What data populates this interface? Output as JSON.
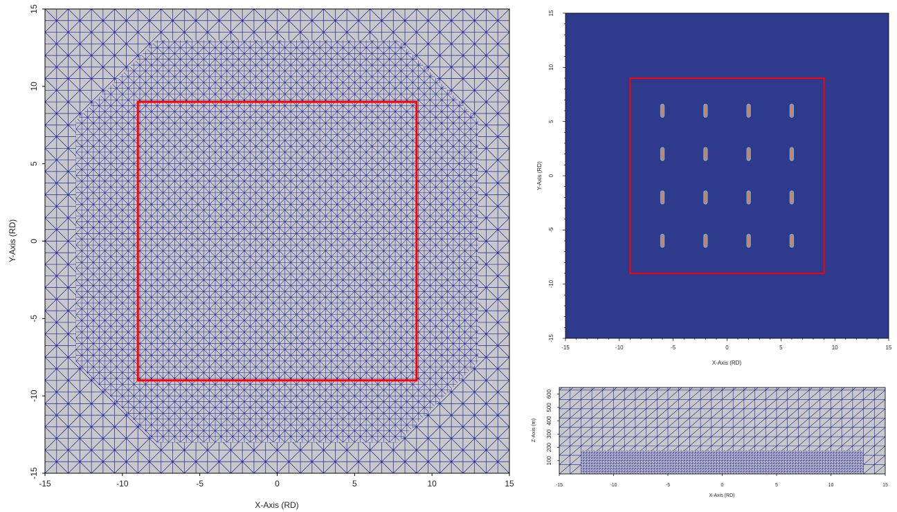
{
  "chart_data": [
    {
      "type": "heatmap",
      "id": "mesh_plan",
      "xlabel": "X-Axis (RD)",
      "ylabel": "Y-Axis (RD)",
      "xlim": [
        -15,
        15
      ],
      "ylim": [
        -15,
        15
      ],
      "xticks": [
        -15,
        -10,
        -5,
        0,
        5,
        10,
        15
      ],
      "yticks": [
        -15,
        -10,
        -5,
        0,
        5,
        10,
        15
      ],
      "mesh_color": "#1f1fa0",
      "background_color": "#c8c8c8",
      "coarse_spacing": 0.75,
      "fine_spacing": 0.375,
      "fine_region_octagon_half_width": 13,
      "fine_region_octagon_corner": 7.8,
      "highlight_box": {
        "x": [
          -9,
          9
        ],
        "y": [
          -9,
          9
        ],
        "color": "#ff0000"
      }
    },
    {
      "type": "heatmap",
      "id": "well_field",
      "xlabel": "X-Axis (RD)",
      "ylabel": "Y-Axis (RD)",
      "xlim": [
        -15,
        15
      ],
      "ylim": [
        -15,
        15
      ],
      "xticks": [
        -15,
        -10,
        -5,
        0,
        5,
        10,
        15
      ],
      "yticks": [
        -15,
        -10,
        -5,
        0,
        5,
        10,
        15
      ],
      "field_color": "#2e3a8c",
      "well_color": "#e8784a",
      "well_halo_color": "#6fb6d8",
      "well_x": [
        -6,
        -2,
        2,
        6
      ],
      "well_y": [
        6,
        2,
        -2,
        -6
      ],
      "well_length": 1.1,
      "highlight_box": {
        "x": [
          -9,
          9
        ],
        "y": [
          -9,
          9
        ],
        "color": "#ff0000"
      }
    },
    {
      "type": "heatmap",
      "id": "mesh_section",
      "xlabel": "X-Axis (RD)",
      "ylabel": "Z-Axis (m)",
      "xlim": [
        -15,
        15
      ],
      "ylim": [
        0,
        650
      ],
      "xticks": [
        -15,
        -10,
        -5,
        0,
        5,
        10,
        15
      ],
      "yticks": [
        100,
        200,
        300,
        400,
        500,
        600
      ],
      "mesh_color": "#1f1fa0",
      "background_color": "#c8c8c8",
      "coarse_spacing_x": 1.0,
      "coarse_spacing_z": 70,
      "fine_spacing_x": 0.25,
      "fine_spacing_z": 20,
      "fine_layer_top": 175,
      "fine_x": [
        -13,
        13
      ]
    }
  ]
}
